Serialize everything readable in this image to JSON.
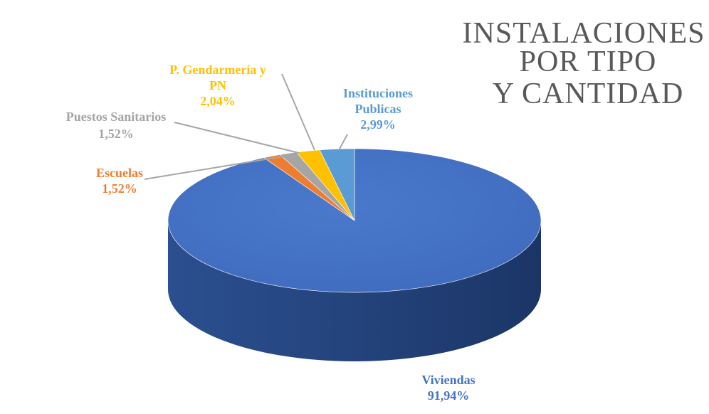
{
  "chart_data": {
    "type": "pie",
    "title_lines": [
      "INSTALACIONES",
      "POR TIPO",
      "Y CANTIDAD"
    ],
    "categories": [
      "Viviendas",
      "Escuelas",
      "Puestos Sanitarios",
      "P. Gendarmería y PN",
      "Instituciones Publicas"
    ],
    "values": [
      91.94,
      1.52,
      1.52,
      2.04,
      2.99
    ],
    "value_labels": [
      "91,94%",
      "1,52%",
      "1,52%",
      "2,04%",
      "2,99%"
    ],
    "label_lines": [
      [
        "Viviendas"
      ],
      [
        "Escuelas"
      ],
      [
        "Puestos Sanitarios"
      ],
      [
        "P. Gendarmería  y",
        "PN"
      ],
      [
        "Instituciones",
        "Publicas"
      ]
    ],
    "colors": [
      "#4472C4",
      "#ED7D31",
      "#A5A5A5",
      "#FFC000",
      "#5B9BD5"
    ],
    "label_colors": [
      "#4472C4",
      "#ED7D31",
      "#A5A5A5",
      "#FFC000",
      "#5B9BD5"
    ],
    "style": "3d-pie",
    "legend": "none"
  }
}
